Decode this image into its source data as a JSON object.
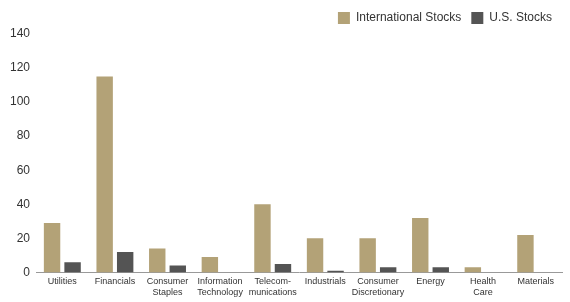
{
  "chart_data": {
    "type": "bar",
    "categories": [
      "Utilities",
      "Financials",
      "Consumer Staples",
      "Information Technology",
      "Telecom-munications",
      "Industrials",
      "Consumer Discretionary",
      "Energy",
      "Health Care",
      "Materials"
    ],
    "series": [
      {
        "name": "International Stocks",
        "color": "#b3a277",
        "values": [
          29,
          115,
          14,
          9,
          40,
          20,
          20,
          32,
          3,
          22
        ]
      },
      {
        "name": "U.S. Stocks",
        "color": "#545454",
        "values": [
          6,
          12,
          4,
          0,
          5,
          1,
          3,
          3,
          0,
          0
        ]
      }
    ],
    "ylim": [
      0,
      140
    ],
    "yticks": [
      0,
      20,
      40,
      60,
      80,
      100,
      120,
      140
    ],
    "grid": false,
    "legend": "top-right"
  }
}
